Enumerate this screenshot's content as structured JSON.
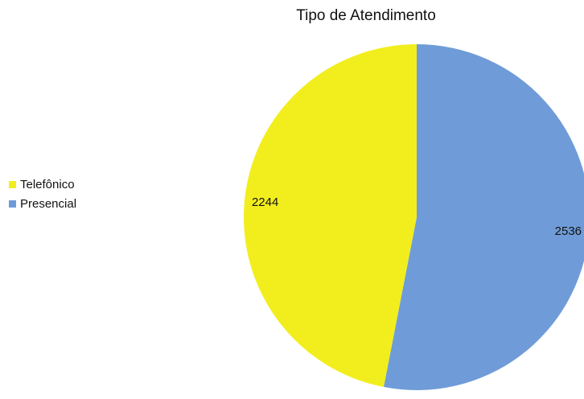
{
  "chart_data": {
    "type": "pie",
    "title": "Tipo de Atendimento",
    "categories": [
      "Telefônico",
      "Presencial"
    ],
    "values": [
      2244,
      2536
    ],
    "colors": [
      "#f2ee1e",
      "#6f9cd8"
    ],
    "legend": "left"
  }
}
